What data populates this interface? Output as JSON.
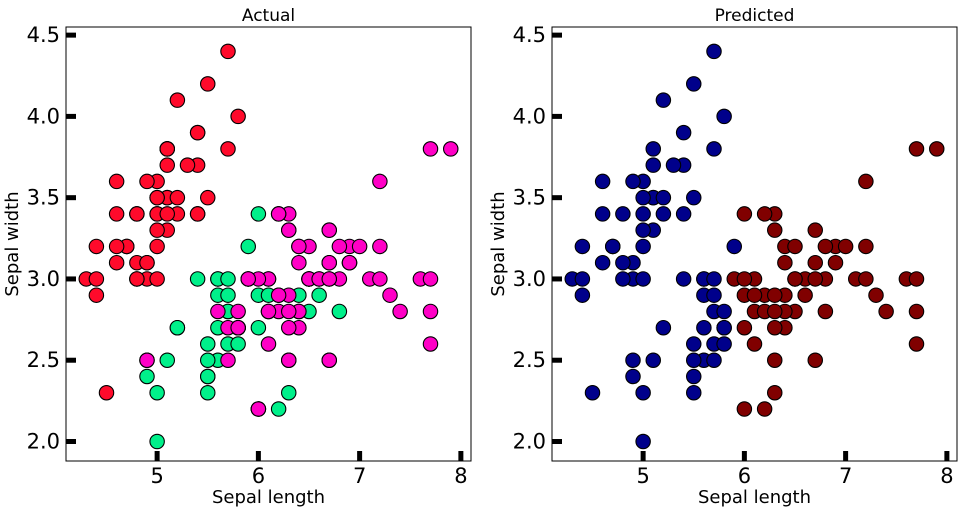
{
  "chart_data": [
    {
      "type": "scatter",
      "title": "Actual",
      "xlabel": "Sepal length",
      "ylabel": "Sepal width",
      "xlim": [
        4.1,
        8.1
      ],
      "ylim": [
        1.88,
        4.55
      ],
      "xticks": [
        5,
        6,
        7,
        8
      ],
      "yticks": [
        2.0,
        2.5,
        3.0,
        3.5,
        4.0,
        4.5
      ],
      "yticklabels": [
        "2.0",
        "2.5",
        "3.0",
        "3.5",
        "4.0",
        "4.5"
      ],
      "grid": false,
      "series": [
        {
          "color": "#ff0a2b",
          "points": [
            [
              5.1,
              3.5
            ],
            [
              4.9,
              3.0
            ],
            [
              4.7,
              3.2
            ],
            [
              4.6,
              3.1
            ],
            [
              5.0,
              3.6
            ],
            [
              5.4,
              3.9
            ],
            [
              4.6,
              3.4
            ],
            [
              5.0,
              3.4
            ],
            [
              4.4,
              2.9
            ],
            [
              4.9,
              3.1
            ],
            [
              5.4,
              3.7
            ],
            [
              4.8,
              3.4
            ],
            [
              4.8,
              3.0
            ],
            [
              4.3,
              3.0
            ],
            [
              5.8,
              4.0
            ],
            [
              5.7,
              4.4
            ],
            [
              5.4,
              3.9
            ],
            [
              5.1,
              3.5
            ],
            [
              5.7,
              3.8
            ],
            [
              5.1,
              3.8
            ],
            [
              5.4,
              3.4
            ],
            [
              5.1,
              3.7
            ],
            [
              4.6,
              3.6
            ],
            [
              5.1,
              3.3
            ],
            [
              4.8,
              3.4
            ],
            [
              5.0,
              3.0
            ],
            [
              5.0,
              3.4
            ],
            [
              5.2,
              3.5
            ],
            [
              5.2,
              3.4
            ],
            [
              4.7,
              3.2
            ],
            [
              4.8,
              3.1
            ],
            [
              5.4,
              3.4
            ],
            [
              5.2,
              4.1
            ],
            [
              5.5,
              4.2
            ],
            [
              4.9,
              3.1
            ],
            [
              5.0,
              3.2
            ],
            [
              5.5,
              3.5
            ],
            [
              4.9,
              3.6
            ],
            [
              4.4,
              3.0
            ],
            [
              5.1,
              3.4
            ],
            [
              5.0,
              3.5
            ],
            [
              4.5,
              2.3
            ],
            [
              4.4,
              3.2
            ],
            [
              5.0,
              3.5
            ],
            [
              5.1,
              3.8
            ],
            [
              4.8,
              3.0
            ],
            [
              5.1,
              3.8
            ],
            [
              4.6,
              3.2
            ],
            [
              5.3,
              3.7
            ],
            [
              5.0,
              3.3
            ]
          ]
        },
        {
          "color": "#00f08a",
          "points": [
            [
              5.5,
              2.3
            ],
            [
              5.7,
              2.8
            ],
            [
              4.9,
              2.4
            ],
            [
              5.2,
              2.7
            ],
            [
              5.0,
              2.0
            ],
            [
              5.9,
              3.0
            ],
            [
              6.0,
              2.2
            ],
            [
              5.6,
              2.9
            ],
            [
              5.6,
              3.0
            ],
            [
              5.8,
              2.7
            ],
            [
              6.2,
              2.2
            ],
            [
              5.6,
              2.5
            ],
            [
              5.9,
              3.2
            ],
            [
              6.1,
              2.8
            ],
            [
              6.4,
              2.9
            ],
            [
              6.6,
              3.0
            ],
            [
              6.8,
              2.8
            ],
            [
              6.0,
              2.9
            ],
            [
              5.7,
              2.6
            ],
            [
              5.5,
              2.4
            ],
            [
              5.5,
              2.4
            ],
            [
              5.8,
              2.7
            ],
            [
              6.0,
              2.7
            ],
            [
              5.4,
              3.0
            ],
            [
              6.0,
              3.4
            ],
            [
              6.3,
              2.3
            ],
            [
              5.6,
              3.0
            ],
            [
              5.5,
              2.5
            ],
            [
              5.5,
              2.6
            ],
            [
              6.1,
              3.0
            ],
            [
              5.8,
              2.6
            ],
            [
              5.0,
              2.3
            ],
            [
              5.6,
              2.7
            ],
            [
              5.7,
              3.0
            ],
            [
              5.7,
              2.9
            ],
            [
              6.2,
              2.9
            ],
            [
              5.1,
              2.5
            ],
            [
              5.7,
              2.8
            ],
            [
              6.5,
              2.8
            ],
            [
              6.7,
              3.1
            ],
            [
              6.9,
              3.1
            ],
            [
              6.5,
              3.0
            ],
            [
              6.4,
              3.2
            ],
            [
              6.3,
              3.3
            ],
            [
              5.9,
              3.0
            ],
            [
              6.3,
              2.5
            ],
            [
              6.1,
              2.9
            ],
            [
              6.6,
              2.9
            ],
            [
              5.2,
              2.7
            ],
            [
              6.0,
              2.2
            ]
          ]
        },
        {
          "color": "#ff00c6",
          "points": [
            [
              6.3,
              3.3
            ],
            [
              5.8,
              2.7
            ],
            [
              7.1,
              3.0
            ],
            [
              6.3,
              2.9
            ],
            [
              6.5,
              3.0
            ],
            [
              7.6,
              3.0
            ],
            [
              4.9,
              2.5
            ],
            [
              7.3,
              2.9
            ],
            [
              6.7,
              2.5
            ],
            [
              7.2,
              3.6
            ],
            [
              6.5,
              3.2
            ],
            [
              6.4,
              2.7
            ],
            [
              6.8,
              3.0
            ],
            [
              5.7,
              2.5
            ],
            [
              5.8,
              2.8
            ],
            [
              6.4,
              3.2
            ],
            [
              6.5,
              3.0
            ],
            [
              7.7,
              3.8
            ],
            [
              7.7,
              2.6
            ],
            [
              6.0,
              2.2
            ],
            [
              6.9,
              3.2
            ],
            [
              5.6,
              2.8
            ],
            [
              7.7,
              2.8
            ],
            [
              6.3,
              2.7
            ],
            [
              6.7,
              3.3
            ],
            [
              7.2,
              3.2
            ],
            [
              6.2,
              2.8
            ],
            [
              6.1,
              3.0
            ],
            [
              6.4,
              2.8
            ],
            [
              7.2,
              3.0
            ],
            [
              7.4,
              2.8
            ],
            [
              7.9,
              3.8
            ],
            [
              6.4,
              2.8
            ],
            [
              6.3,
              2.8
            ],
            [
              6.1,
              2.6
            ],
            [
              7.7,
              3.0
            ],
            [
              6.3,
              3.4
            ],
            [
              6.4,
              3.1
            ],
            [
              6.0,
              3.0
            ],
            [
              6.9,
              3.1
            ],
            [
              6.7,
              3.1
            ],
            [
              6.9,
              3.1
            ],
            [
              5.8,
              2.7
            ],
            [
              6.8,
              3.2
            ],
            [
              6.7,
              3.3
            ],
            [
              6.7,
              3.0
            ],
            [
              6.3,
              2.5
            ],
            [
              6.5,
              3.0
            ],
            [
              6.2,
              3.4
            ],
            [
              5.9,
              3.0
            ],
            [
              5.7,
              2.7
            ],
            [
              6.1,
              2.8
            ],
            [
              6.6,
              3.0
            ],
            [
              6.2,
              3.4
            ],
            [
              6.7,
              3.0
            ],
            [
              7.0,
              3.2
            ],
            [
              6.2,
              2.9
            ],
            [
              4.9,
              2.5
            ],
            [
              6.7,
              2.5
            ],
            [
              5.8,
              2.7
            ]
          ]
        }
      ]
    },
    {
      "type": "scatter",
      "title": "Predicted",
      "xlabel": "Sepal length",
      "ylabel": "Sepal width",
      "xlim": [
        4.1,
        8.1
      ],
      "ylim": [
        1.88,
        4.55
      ],
      "xticks": [
        5,
        6,
        7,
        8
      ],
      "yticks": [
        2.0,
        2.5,
        3.0,
        3.5,
        4.0,
        4.5
      ],
      "yticklabels": [
        "2.0",
        "2.5",
        "3.0",
        "3.5",
        "4.0",
        "4.5"
      ],
      "grid": false,
      "series": [
        {
          "color": "#00008b",
          "points": [
            [
              5.1,
              3.5
            ],
            [
              4.9,
              3.0
            ],
            [
              4.7,
              3.2
            ],
            [
              4.6,
              3.1
            ],
            [
              5.0,
              3.6
            ],
            [
              5.4,
              3.9
            ],
            [
              4.6,
              3.4
            ],
            [
              5.0,
              3.4
            ],
            [
              4.4,
              2.9
            ],
            [
              4.9,
              3.1
            ],
            [
              5.4,
              3.7
            ],
            [
              4.8,
              3.4
            ],
            [
              4.8,
              3.0
            ],
            [
              4.3,
              3.0
            ],
            [
              5.8,
              4.0
            ],
            [
              5.7,
              4.4
            ],
            [
              5.1,
              3.5
            ],
            [
              5.7,
              3.8
            ],
            [
              5.1,
              3.8
            ],
            [
              5.4,
              3.4
            ],
            [
              5.1,
              3.7
            ],
            [
              4.6,
              3.6
            ],
            [
              5.1,
              3.3
            ],
            [
              5.0,
              3.0
            ],
            [
              5.2,
              3.5
            ],
            [
              5.2,
              3.4
            ],
            [
              4.7,
              3.2
            ],
            [
              4.8,
              3.1
            ],
            [
              5.2,
              4.1
            ],
            [
              5.5,
              4.2
            ],
            [
              5.0,
              3.2
            ],
            [
              5.5,
              3.5
            ],
            [
              4.9,
              3.6
            ],
            [
              4.4,
              3.0
            ],
            [
              5.0,
              3.5
            ],
            [
              4.5,
              2.3
            ],
            [
              4.4,
              3.2
            ],
            [
              5.3,
              3.7
            ],
            [
              5.0,
              3.3
            ],
            [
              5.5,
              2.3
            ],
            [
              5.7,
              2.8
            ],
            [
              4.9,
              2.4
            ],
            [
              5.2,
              2.7
            ],
            [
              5.0,
              2.0
            ],
            [
              5.6,
              2.9
            ],
            [
              5.6,
              3.0
            ],
            [
              5.8,
              2.7
            ],
            [
              5.6,
              2.5
            ],
            [
              5.7,
              2.6
            ],
            [
              5.5,
              2.4
            ],
            [
              5.8,
              2.7
            ],
            [
              5.4,
              3.0
            ],
            [
              5.6,
              3.0
            ],
            [
              5.5,
              2.5
            ],
            [
              5.5,
              2.6
            ],
            [
              5.8,
              2.6
            ],
            [
              5.0,
              2.3
            ],
            [
              5.6,
              2.7
            ],
            [
              5.7,
              3.0
            ],
            [
              5.7,
              2.9
            ],
            [
              5.1,
              2.5
            ],
            [
              5.9,
              3.2
            ],
            [
              4.9,
              2.5
            ],
            [
              5.7,
              2.5
            ],
            [
              5.8,
              2.8
            ]
          ]
        },
        {
          "color": "#800000",
          "points": [
            [
              5.9,
              3.0
            ],
            [
              6.0,
              2.2
            ],
            [
              6.2,
              2.2
            ],
            [
              6.1,
              2.8
            ],
            [
              6.4,
              2.9
            ],
            [
              6.6,
              3.0
            ],
            [
              6.8,
              2.8
            ],
            [
              6.0,
              2.9
            ],
            [
              6.0,
              2.7
            ],
            [
              6.0,
              3.4
            ],
            [
              6.3,
              2.3
            ],
            [
              6.1,
              3.0
            ],
            [
              6.2,
              2.9
            ],
            [
              6.5,
              2.8
            ],
            [
              6.7,
              3.1
            ],
            [
              6.9,
              3.1
            ],
            [
              6.5,
              3.0
            ],
            [
              6.4,
              3.2
            ],
            [
              6.3,
              3.3
            ],
            [
              6.3,
              2.5
            ],
            [
              6.1,
              2.9
            ],
            [
              6.6,
              2.9
            ],
            [
              6.3,
              2.9
            ],
            [
              7.1,
              3.0
            ],
            [
              7.6,
              3.0
            ],
            [
              7.3,
              2.9
            ],
            [
              6.7,
              2.5
            ],
            [
              7.2,
              3.6
            ],
            [
              6.5,
              3.2
            ],
            [
              6.4,
              2.7
            ],
            [
              6.8,
              3.0
            ],
            [
              7.7,
              3.8
            ],
            [
              7.7,
              2.6
            ],
            [
              6.9,
              3.2
            ],
            [
              7.7,
              2.8
            ],
            [
              6.3,
              2.7
            ],
            [
              6.7,
              3.3
            ],
            [
              7.2,
              3.2
            ],
            [
              6.2,
              2.8
            ],
            [
              6.4,
              2.8
            ],
            [
              7.2,
              3.0
            ],
            [
              7.4,
              2.8
            ],
            [
              7.9,
              3.8
            ],
            [
              6.3,
              2.8
            ],
            [
              6.1,
              2.6
            ],
            [
              7.7,
              3.0
            ],
            [
              6.3,
              3.4
            ],
            [
              6.4,
              3.1
            ],
            [
              6.0,
              3.0
            ],
            [
              6.8,
              3.2
            ],
            [
              6.7,
              3.0
            ],
            [
              7.0,
              3.2
            ],
            [
              6.2,
              3.4
            ],
            [
              6.5,
              3.0
            ]
          ]
        }
      ]
    }
  ]
}
